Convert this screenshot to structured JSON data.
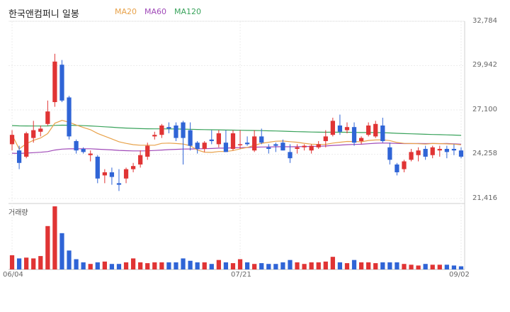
{
  "chart_data": {
    "type": "candlestick",
    "title": "한국앤컴퍼니 일봉",
    "legend": [
      {
        "name": "MA20",
        "color": "#e8a24a"
      },
      {
        "name": "MA60",
        "color": "#a04ab8"
      },
      {
        "name": "MA120",
        "color": "#3aa35c"
      }
    ],
    "y_ticks": [
      "32,784",
      "29,942",
      "27,100",
      "24,258",
      "21,416"
    ],
    "y_range": [
      21416,
      32784
    ],
    "x_ticks": [
      {
        "label": "06/04",
        "index": 0
      },
      {
        "label": "07/21",
        "index": 32
      },
      {
        "label": "09/02",
        "index": 63
      }
    ],
    "volume_label": "거래량",
    "up_color": "#e03434",
    "down_color": "#2f64d6",
    "candles": [
      [
        24900,
        25800,
        24500,
        25500
      ],
      [
        24500,
        24800,
        23300,
        23700
      ],
      [
        24100,
        25700,
        24000,
        25600
      ],
      [
        25300,
        26400,
        25000,
        25800
      ],
      [
        25700,
        26100,
        25400,
        25900
      ],
      [
        26200,
        27700,
        26100,
        27000
      ],
      [
        27600,
        30700,
        27300,
        30200
      ],
      [
        30000,
        30300,
        27600,
        27700
      ],
      [
        27900,
        28000,
        25200,
        25400
      ],
      [
        25100,
        25200,
        24300,
        24500
      ],
      [
        24600,
        24700,
        24300,
        24400
      ],
      [
        24200,
        24500,
        23800,
        24300
      ],
      [
        24100,
        24200,
        22400,
        22700
      ],
      [
        22900,
        23300,
        22400,
        23100
      ],
      [
        23100,
        23400,
        22300,
        22800
      ],
      [
        22400,
        23300,
        21900,
        22300
      ],
      [
        22700,
        23400,
        22400,
        23300
      ],
      [
        23300,
        23700,
        23100,
        23500
      ],
      [
        23600,
        24500,
        23400,
        24200
      ],
      [
        24100,
        25000,
        23900,
        24800
      ],
      [
        25400,
        25700,
        25200,
        25500
      ],
      [
        25500,
        26200,
        25300,
        26100
      ],
      [
        26000,
        26300,
        25600,
        25900
      ],
      [
        26100,
        26300,
        25100,
        25300
      ],
      [
        26300,
        26400,
        23600,
        25300
      ],
      [
        25800,
        26300,
        24500,
        24800
      ],
      [
        25000,
        25100,
        24300,
        24600
      ],
      [
        24600,
        25100,
        24400,
        25000
      ],
      [
        25200,
        25800,
        24900,
        25100
      ],
      [
        24900,
        25800,
        24700,
        25600
      ],
      [
        25000,
        25800,
        24400,
        24400
      ],
      [
        24600,
        25800,
        24500,
        25600
      ],
      [
        24900,
        25800,
        24600,
        24900
      ],
      [
        25000,
        25400,
        24800,
        24900
      ],
      [
        24500,
        25800,
        24400,
        25400
      ],
      [
        25400,
        25900,
        24900,
        25000
      ],
      [
        24700,
        24900,
        24300,
        24600
      ],
      [
        24900,
        25000,
        24400,
        24800
      ],
      [
        25000,
        25200,
        24500,
        24500
      ],
      [
        24400,
        24900,
        23700,
        24000
      ],
      [
        24600,
        24900,
        24300,
        24700
      ],
      [
        24700,
        24900,
        24500,
        24800
      ],
      [
        24500,
        24900,
        24300,
        24800
      ],
      [
        24700,
        25100,
        24600,
        24900
      ],
      [
        25100,
        25800,
        24700,
        25400
      ],
      [
        25500,
        26600,
        25400,
        26400
      ],
      [
        26100,
        26800,
        25500,
        25700
      ],
      [
        25800,
        26300,
        25600,
        26000
      ],
      [
        26000,
        26300,
        24800,
        25000
      ],
      [
        25100,
        25400,
        24900,
        25300
      ],
      [
        25500,
        26300,
        25400,
        26100
      ],
      [
        25400,
        26400,
        25300,
        26200
      ],
      [
        26100,
        26600,
        25000,
        25100
      ],
      [
        24700,
        25000,
        23600,
        23900
      ],
      [
        23600,
        23700,
        22900,
        23100
      ],
      [
        23300,
        23900,
        23100,
        23800
      ],
      [
        23900,
        24600,
        23800,
        24400
      ],
      [
        24200,
        24700,
        23800,
        24500
      ],
      [
        24600,
        24800,
        23900,
        24100
      ],
      [
        24200,
        24800,
        24000,
        24700
      ],
      [
        24500,
        24800,
        24100,
        24600
      ],
      [
        24600,
        24800,
        24000,
        24400
      ],
      [
        24600,
        24900,
        24200,
        24500
      ],
      [
        24500,
        24700,
        24000,
        24100
      ]
    ],
    "volume": [
      18,
      14,
      15,
      14,
      17,
      55,
      80,
      46,
      24,
      13,
      9,
      7,
      9,
      10,
      7,
      7,
      9,
      14,
      9,
      8,
      9,
      9,
      9,
      9,
      14,
      11,
      9,
      9,
      7,
      12,
      9,
      8,
      13,
      9,
      7,
      8,
      7,
      7,
      9,
      12,
      9,
      7,
      9,
      9,
      10,
      16,
      9,
      8,
      12,
      9,
      9,
      8,
      9,
      9,
      9,
      7,
      6,
      5,
      7,
      6,
      6,
      6,
      5,
      4
    ]
  }
}
